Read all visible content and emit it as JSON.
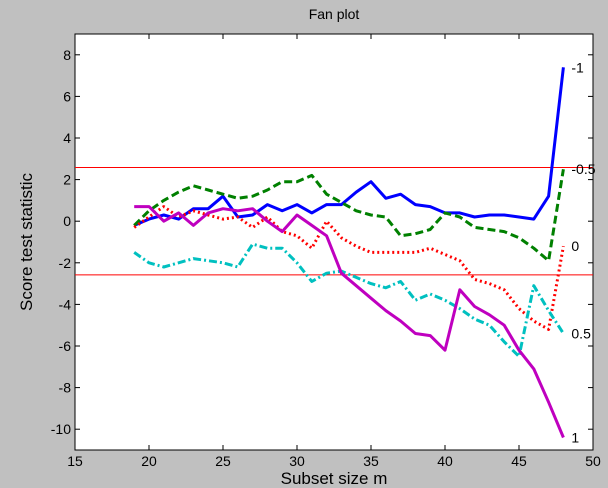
{
  "chart_data": {
    "type": "line",
    "title": "Fan plot",
    "xlabel": "Subset size m",
    "ylabel": "Score test statistic",
    "xlim": [
      15,
      50
    ],
    "ylim": [
      -11,
      9
    ],
    "xticks": [
      15,
      20,
      25,
      30,
      35,
      40,
      45,
      50
    ],
    "yticks": [
      -10,
      -8,
      -6,
      -4,
      -2,
      0,
      2,
      4,
      6,
      8
    ],
    "grid": false,
    "background": "#c0c0c0",
    "plot_background": "#ffffff",
    "threshold_color": "#ff0000",
    "thresholds": [
      2.58,
      -2.58
    ],
    "series": [
      {
        "name": "-1",
        "color": "#0000ff",
        "style": "solid",
        "x": [
          19,
          20,
          21,
          22,
          23,
          24,
          25,
          26,
          27,
          28,
          29,
          30,
          31,
          32,
          33,
          34,
          35,
          36,
          37,
          38,
          39,
          40,
          41,
          42,
          43,
          44,
          45,
          46,
          47,
          48
        ],
        "y": [
          -0.2,
          0.1,
          0.3,
          0.1,
          0.6,
          0.6,
          1.2,
          0.2,
          0.3,
          0.8,
          0.5,
          0.8,
          0.4,
          0.8,
          0.8,
          1.4,
          1.9,
          1.1,
          1.3,
          0.8,
          0.7,
          0.4,
          0.4,
          0.2,
          0.3,
          0.3,
          0.2,
          0.1,
          1.2,
          7.4
        ]
      },
      {
        "name": "-0.5",
        "color": "#008000",
        "style": "dashed",
        "x": [
          19,
          20,
          21,
          22,
          23,
          24,
          25,
          26,
          27,
          28,
          29,
          30,
          31,
          32,
          33,
          34,
          35,
          36,
          37,
          38,
          39,
          40,
          41,
          42,
          43,
          44,
          45,
          46,
          47,
          48
        ],
        "y": [
          -0.2,
          0.5,
          1.0,
          1.4,
          1.7,
          1.5,
          1.3,
          1.1,
          1.2,
          1.5,
          1.9,
          1.9,
          2.2,
          1.3,
          0.9,
          0.5,
          0.3,
          0.2,
          -0.7,
          -0.6,
          -0.4,
          0.4,
          0.2,
          -0.3,
          -0.4,
          -0.5,
          -0.8,
          -1.3,
          -1.9,
          2.5
        ]
      },
      {
        "name": "0",
        "color": "#ff0000",
        "style": "dotted",
        "x": [
          19,
          20,
          21,
          22,
          23,
          24,
          25,
          26,
          27,
          28,
          29,
          30,
          31,
          32,
          33,
          34,
          35,
          36,
          37,
          38,
          39,
          40,
          41,
          42,
          43,
          44,
          45,
          46,
          47,
          48
        ],
        "y": [
          -0.3,
          0.2,
          0.7,
          0.2,
          0.5,
          0.3,
          0.1,
          0.2,
          -0.3,
          0.2,
          -0.5,
          -0.7,
          -1.3,
          0.0,
          -0.8,
          -1.2,
          -1.5,
          -1.5,
          -1.5,
          -1.5,
          -1.3,
          -1.6,
          -1.9,
          -2.8,
          -3.0,
          -3.3,
          -4.2,
          -4.8,
          -5.2,
          -1.2
        ]
      },
      {
        "name": "0.5",
        "color": "#00c0c0",
        "style": "dashdot",
        "x": [
          19,
          20,
          21,
          22,
          23,
          24,
          25,
          26,
          27,
          28,
          29,
          30,
          31,
          32,
          33,
          34,
          35,
          36,
          37,
          38,
          39,
          40,
          41,
          42,
          43,
          44,
          45,
          46,
          47,
          48
        ],
        "y": [
          -1.5,
          -2.0,
          -2.2,
          -2.0,
          -1.8,
          -1.9,
          -2.0,
          -2.2,
          -1.1,
          -1.3,
          -1.3,
          -2.0,
          -2.9,
          -2.5,
          -2.4,
          -2.7,
          -3.0,
          -3.2,
          -2.9,
          -3.8,
          -3.5,
          -3.8,
          -4.2,
          -4.7,
          -5.0,
          -5.8,
          -6.5,
          -3.1,
          -4.3,
          -5.4
        ]
      },
      {
        "name": "1",
        "color": "#bf00bf",
        "style": "solid",
        "x": [
          19,
          20,
          21,
          22,
          23,
          24,
          25,
          26,
          27,
          28,
          29,
          30,
          31,
          32,
          33,
          34,
          35,
          36,
          37,
          38,
          39,
          40,
          41,
          42,
          43,
          44,
          45,
          46,
          47,
          48
        ],
        "y": [
          0.7,
          0.7,
          0.0,
          0.4,
          -0.2,
          0.4,
          0.6,
          0.5,
          0.6,
          0.0,
          -0.5,
          0.3,
          -0.2,
          -0.7,
          -2.5,
          -3.1,
          -3.7,
          -4.3,
          -4.8,
          -5.4,
          -5.5,
          -6.2,
          -3.3,
          -4.1,
          -4.5,
          -5.0,
          -6.2,
          -7.1,
          -8.7,
          -10.4
        ]
      }
    ],
    "series_labels": [
      {
        "text": "-1",
        "series": 0
      },
      {
        "text": "-0.5",
        "series": 1
      },
      {
        "text": "0",
        "series": 2
      },
      {
        "text": "0.5",
        "series": 3
      },
      {
        "text": "1",
        "series": 4
      }
    ]
  }
}
